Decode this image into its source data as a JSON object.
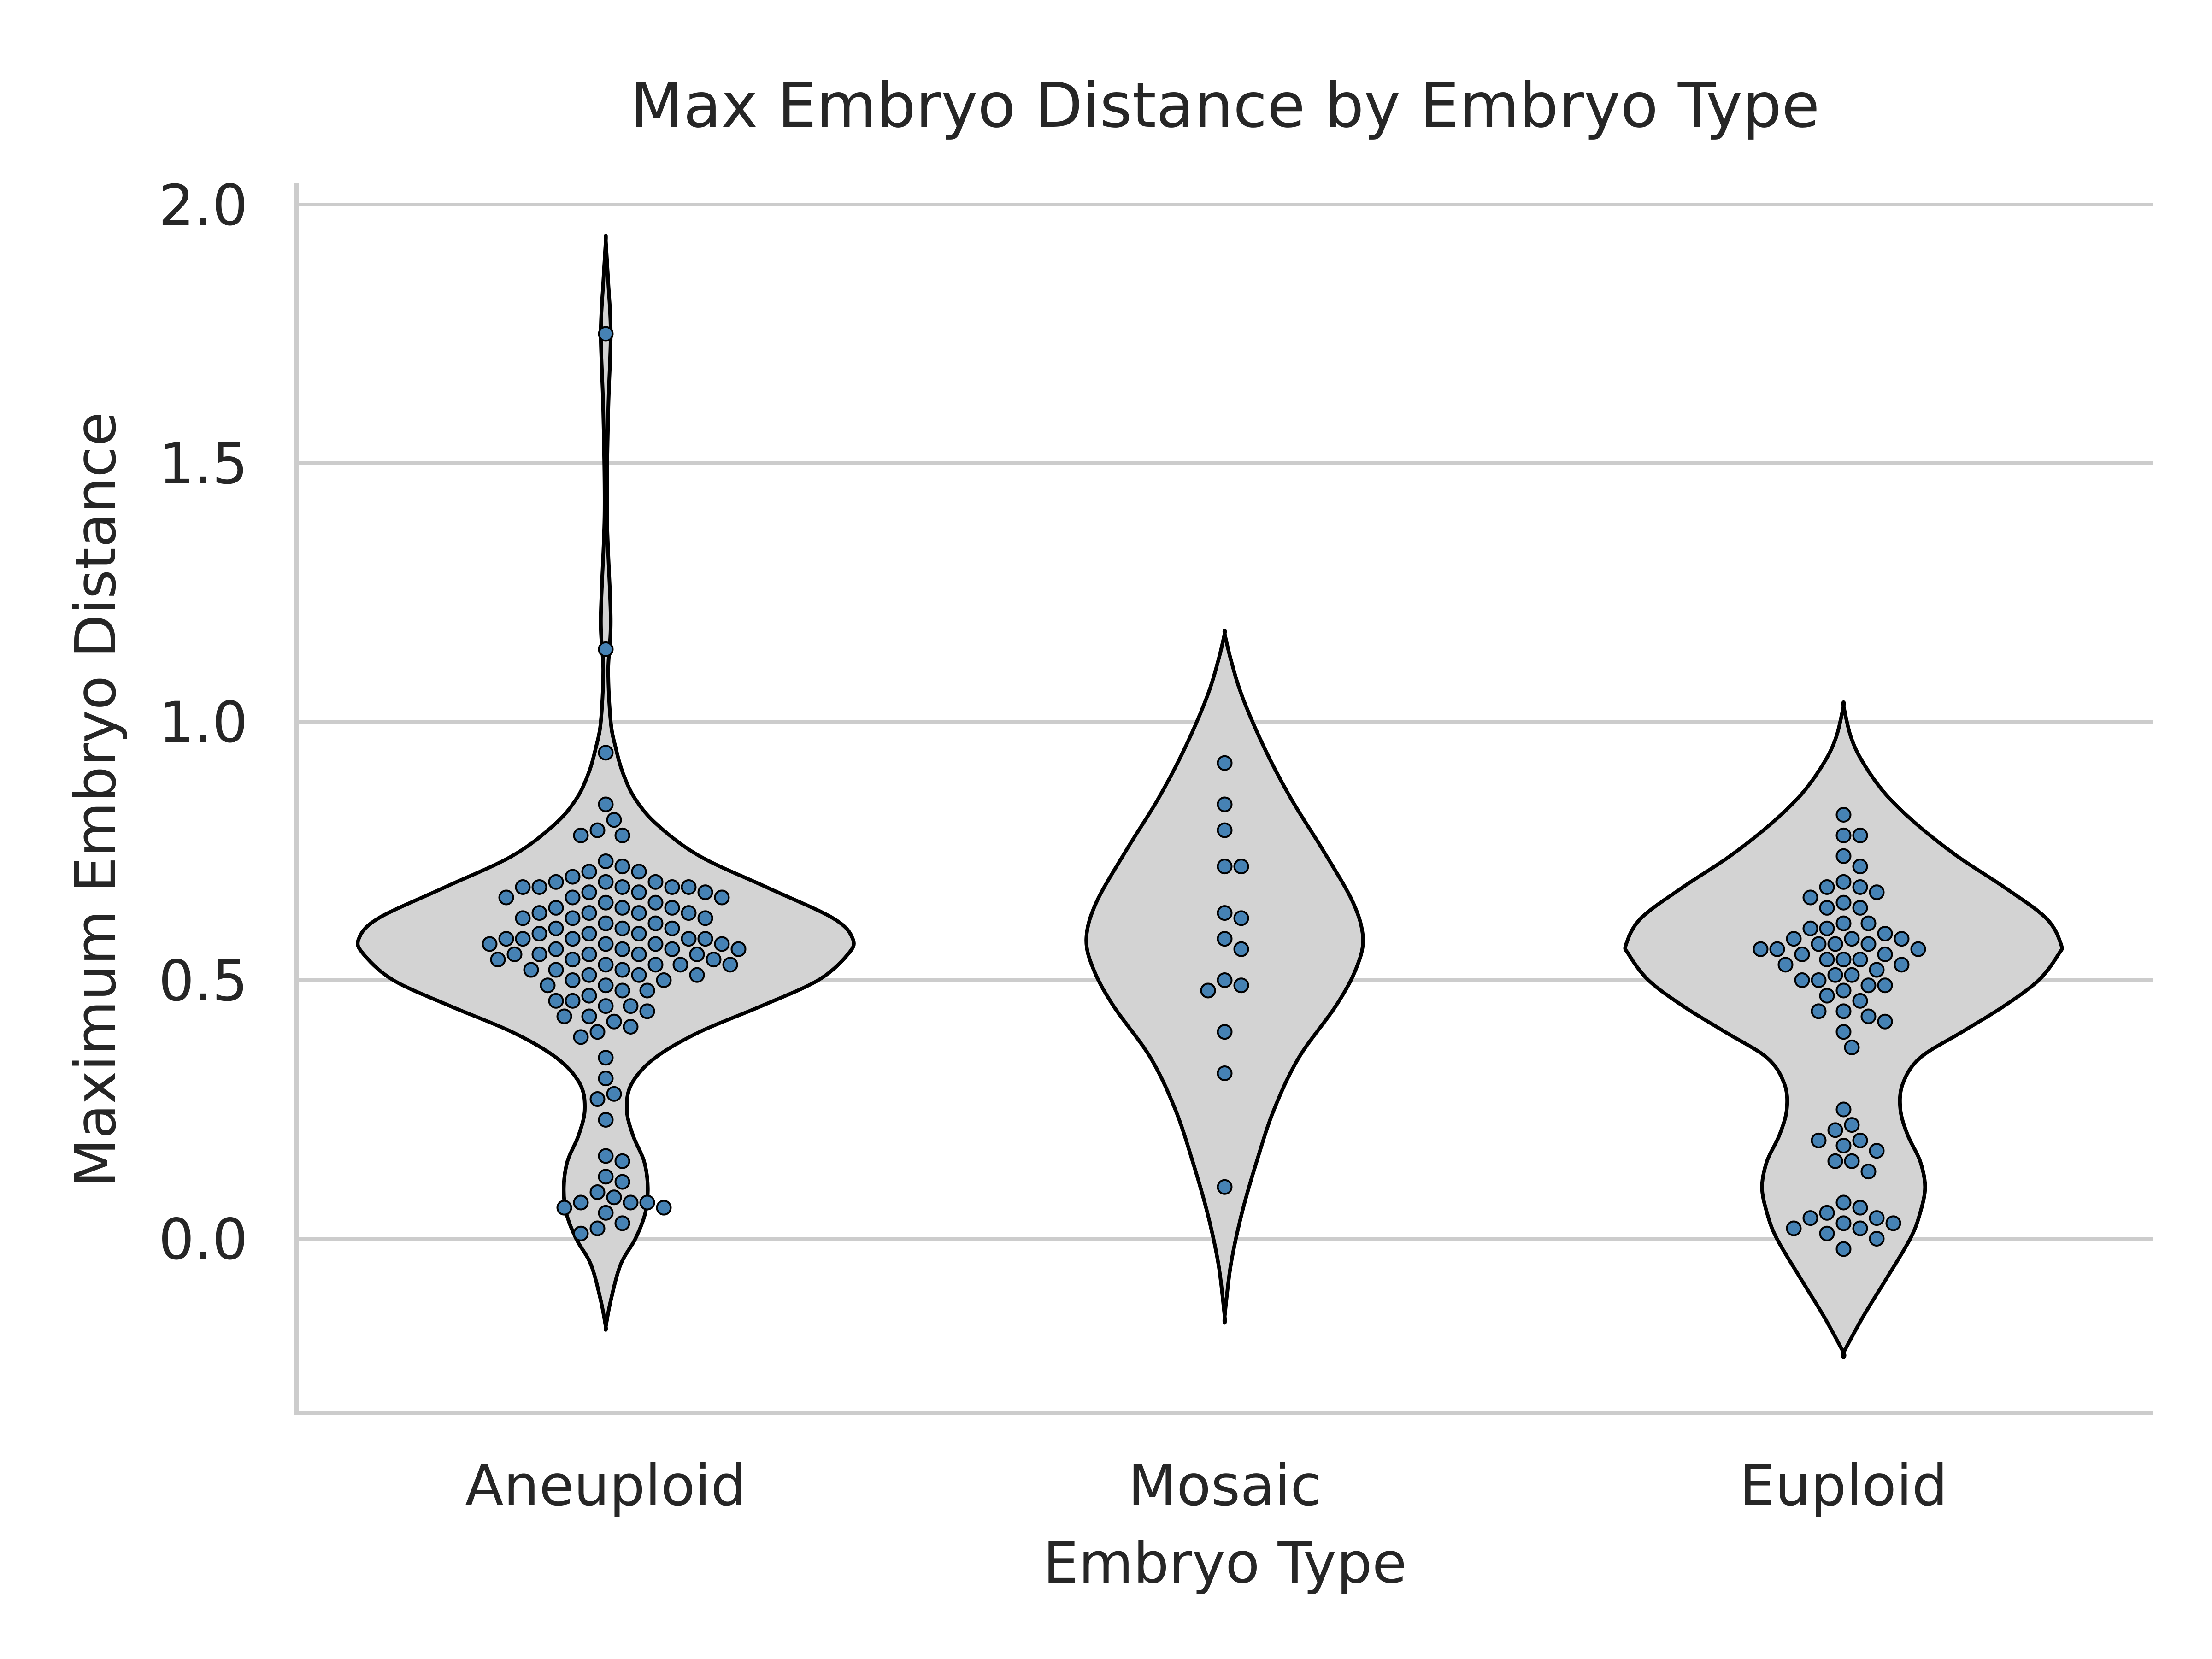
{
  "chart_data": {
    "type": "violin",
    "title": "Max Embryo Distance by Embryo Type",
    "xlabel": "Embryo Type",
    "ylabel": "Maximum Embryo Distance",
    "categories": [
      "Aneuploid",
      "Mosaic",
      "Euploid"
    ],
    "yticks": [
      "0.0",
      "0.5",
      "1.0",
      "1.5",
      "2.0"
    ],
    "ylim": [
      -0.33,
      2.04
    ],
    "grid": "horizontal",
    "point_color": "#4682b4",
    "violin_color": "#d3d3d3",
    "violins": [
      {
        "category": "Aneuploid",
        "profile": [
          [
            -0.17,
            0.0
          ],
          [
            -0.12,
            0.02
          ],
          [
            -0.05,
            0.06
          ],
          [
            0.0,
            0.12
          ],
          [
            0.05,
            0.16
          ],
          [
            0.1,
            0.17
          ],
          [
            0.15,
            0.155
          ],
          [
            0.2,
            0.11
          ],
          [
            0.25,
            0.085
          ],
          [
            0.3,
            0.105
          ],
          [
            0.35,
            0.2
          ],
          [
            0.4,
            0.38
          ],
          [
            0.45,
            0.63
          ],
          [
            0.5,
            0.86
          ],
          [
            0.55,
            0.98
          ],
          [
            0.58,
            1.0
          ],
          [
            0.62,
            0.92
          ],
          [
            0.68,
            0.65
          ],
          [
            0.74,
            0.38
          ],
          [
            0.8,
            0.21
          ],
          [
            0.85,
            0.12
          ],
          [
            0.9,
            0.07
          ],
          [
            0.95,
            0.04
          ],
          [
            1.0,
            0.02
          ],
          [
            1.1,
            0.01
          ],
          [
            1.2,
            0.02
          ],
          [
            1.4,
            0.005
          ],
          [
            1.6,
            0.01
          ],
          [
            1.75,
            0.02
          ],
          [
            1.85,
            0.01
          ],
          [
            1.93,
            0.0
          ]
        ]
      },
      {
        "category": "Mosaic",
        "profile": [
          [
            -0.15,
            0.0
          ],
          [
            -0.05,
            0.025
          ],
          [
            0.05,
            0.07
          ],
          [
            0.15,
            0.13
          ],
          [
            0.25,
            0.2
          ],
          [
            0.35,
            0.3
          ],
          [
            0.45,
            0.45
          ],
          [
            0.52,
            0.53
          ],
          [
            0.58,
            0.56
          ],
          [
            0.65,
            0.52
          ],
          [
            0.75,
            0.4
          ],
          [
            0.85,
            0.27
          ],
          [
            0.95,
            0.16
          ],
          [
            1.05,
            0.07
          ],
          [
            1.12,
            0.025
          ],
          [
            1.17,
            0.0
          ]
        ]
      },
      {
        "category": "Euploid",
        "profile": [
          [
            -0.22,
            0.0
          ],
          [
            -0.15,
            0.08
          ],
          [
            -0.08,
            0.17
          ],
          [
            0.0,
            0.27
          ],
          [
            0.05,
            0.31
          ],
          [
            0.1,
            0.33
          ],
          [
            0.15,
            0.31
          ],
          [
            0.2,
            0.26
          ],
          [
            0.25,
            0.23
          ],
          [
            0.3,
            0.24
          ],
          [
            0.35,
            0.31
          ],
          [
            0.4,
            0.48
          ],
          [
            0.45,
            0.65
          ],
          [
            0.5,
            0.79
          ],
          [
            0.55,
            0.87
          ],
          [
            0.57,
            0.88
          ],
          [
            0.62,
            0.82
          ],
          [
            0.68,
            0.65
          ],
          [
            0.74,
            0.46
          ],
          [
            0.8,
            0.3
          ],
          [
            0.86,
            0.17
          ],
          [
            0.92,
            0.08
          ],
          [
            0.97,
            0.03
          ],
          [
            1.03,
            0.0
          ]
        ]
      }
    ],
    "points": [
      {
        "category": "Aneuploid",
        "values": [
          1.75,
          1.14,
          0.94,
          0.84,
          0.81,
          0.79,
          0.78,
          0.78,
          0.73,
          0.72,
          0.71,
          0.71,
          0.7,
          0.69,
          0.69,
          0.69,
          0.68,
          0.68,
          0.68,
          0.68,
          0.68,
          0.67,
          0.67,
          0.67,
          0.66,
          0.66,
          0.66,
          0.65,
          0.65,
          0.64,
          0.64,
          0.64,
          0.63,
          0.63,
          0.63,
          0.63,
          0.62,
          0.62,
          0.62,
          0.61,
          0.61,
          0.6,
          0.6,
          0.6,
          0.59,
          0.59,
          0.59,
          0.58,
          0.58,
          0.58,
          0.58,
          0.58,
          0.57,
          0.57,
          0.57,
          0.57,
          0.56,
          0.56,
          0.56,
          0.56,
          0.55,
          0.55,
          0.55,
          0.55,
          0.55,
          0.54,
          0.54,
          0.54,
          0.53,
          0.53,
          0.53,
          0.53,
          0.52,
          0.52,
          0.52,
          0.51,
          0.51,
          0.51,
          0.5,
          0.5,
          0.49,
          0.49,
          0.48,
          0.48,
          0.47,
          0.46,
          0.46,
          0.45,
          0.45,
          0.44,
          0.43,
          0.43,
          0.42,
          0.41,
          0.4,
          0.39,
          0.35,
          0.31,
          0.28,
          0.27,
          0.23,
          0.16,
          0.15,
          0.12,
          0.11,
          0.09,
          0.08,
          0.07,
          0.07,
          0.07,
          0.06,
          0.06,
          0.05,
          0.03,
          0.02,
          0.01
        ]
      },
      {
        "category": "Mosaic",
        "values": [
          0.92,
          0.84,
          0.79,
          0.72,
          0.72,
          0.63,
          0.62,
          0.58,
          0.56,
          0.5,
          0.49,
          0.48,
          0.4,
          0.32,
          0.1
        ]
      },
      {
        "category": "Euploid",
        "values": [
          0.82,
          0.78,
          0.78,
          0.74,
          0.72,
          0.69,
          0.68,
          0.68,
          0.67,
          0.66,
          0.65,
          0.64,
          0.64,
          0.61,
          0.61,
          0.6,
          0.6,
          0.59,
          0.58,
          0.58,
          0.58,
          0.57,
          0.57,
          0.57,
          0.56,
          0.56,
          0.56,
          0.55,
          0.55,
          0.54,
          0.54,
          0.54,
          0.53,
          0.53,
          0.52,
          0.51,
          0.51,
          0.5,
          0.5,
          0.49,
          0.49,
          0.48,
          0.47,
          0.46,
          0.44,
          0.44,
          0.43,
          0.42,
          0.4,
          0.37,
          0.25,
          0.22,
          0.21,
          0.19,
          0.19,
          0.18,
          0.17,
          0.15,
          0.15,
          0.13,
          0.07,
          0.06,
          0.05,
          0.04,
          0.04,
          0.03,
          0.03,
          0.02,
          0.02,
          0.01,
          0.0,
          -0.02
        ]
      }
    ]
  }
}
